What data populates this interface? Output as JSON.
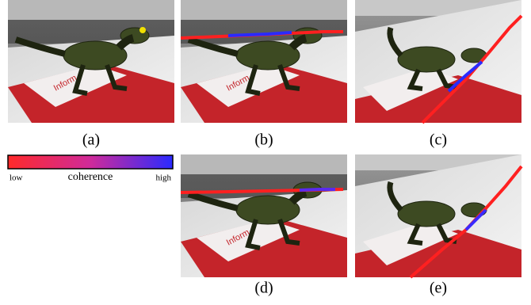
{
  "panels": [
    {
      "caption": "(a)"
    },
    {
      "caption": "(b)"
    },
    {
      "caption": "(c)"
    },
    {
      "caption": "(d)"
    },
    {
      "caption": "(e)"
    }
  ],
  "colorbar": {
    "label": "coherence",
    "low": "low",
    "high": "high"
  }
}
